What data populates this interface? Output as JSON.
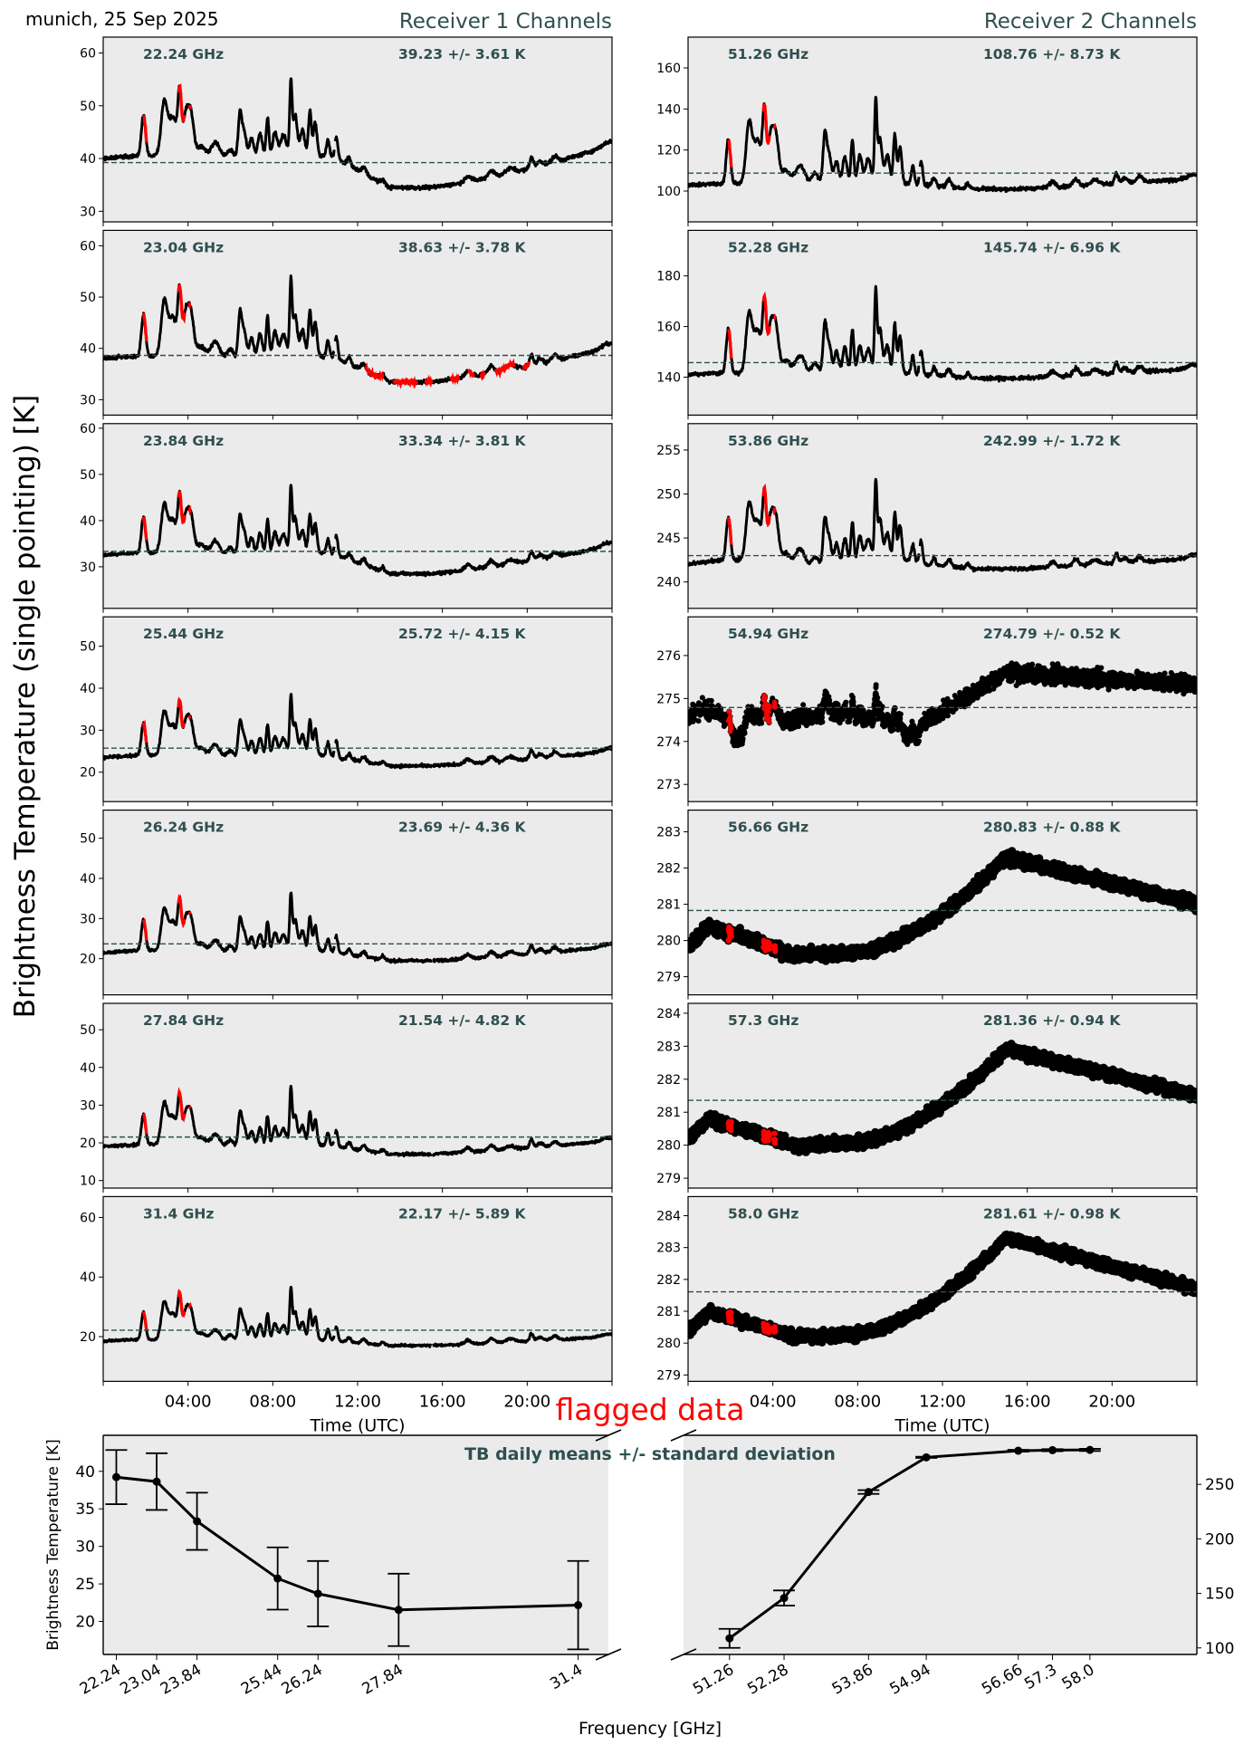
{
  "figure": {
    "location_date": "munich, 25 Sep 2025",
    "receiver1_title": "Receiver 1 Channels",
    "receiver2_title": "Receiver 2 Channels",
    "ylabel": "Brightness Temperature (single pointing) [K]",
    "flag_label": "flagged data",
    "accent_color": "#2f4f4f",
    "flag_color": "#ff0000",
    "panel_bg": "#ebebeb"
  },
  "chart_data": [
    {
      "type": "line",
      "title": "Receiver 1 Channels",
      "xlabel": "Time (UTC)",
      "xticks": [
        "04:00",
        "08:00",
        "12:00",
        "16:00",
        "20:00"
      ],
      "xlim_hours": [
        0,
        24
      ],
      "panels": [
        {
          "freq_label": "22.24 GHz",
          "stats_label": "39.23 +/- 3.61 K",
          "mean": 39.23,
          "std": 3.61,
          "ylim": [
            28,
            63
          ],
          "yticks": [
            30,
            40,
            50,
            60
          ],
          "base_night": 40,
          "base_day": 34.5,
          "peak_scale": 1.0
        },
        {
          "freq_label": "23.04 GHz",
          "stats_label": "38.63 +/- 3.78 K",
          "mean": 38.63,
          "std": 3.78,
          "ylim": [
            27,
            63
          ],
          "yticks": [
            30,
            40,
            50,
            60
          ],
          "base_night": 38,
          "base_day": 33.5,
          "peak_scale": 1.05,
          "extra_flags": true
        },
        {
          "freq_label": "23.84 GHz",
          "stats_label": "33.34 +/- 3.81 K",
          "mean": 33.34,
          "std": 3.81,
          "ylim": [
            21,
            61
          ],
          "yticks": [
            30,
            40,
            50,
            60
          ],
          "base_night": 32.5,
          "base_day": 28.5,
          "peak_scale": 1.0
        },
        {
          "freq_label": "25.44 GHz",
          "stats_label": "25.72 +/- 4.15 K",
          "mean": 25.72,
          "std": 4.15,
          "ylim": [
            13,
            57
          ],
          "yticks": [
            20,
            30,
            40,
            50
          ],
          "base_night": 23.5,
          "base_day": 21.5,
          "peak_scale": 1.0
        },
        {
          "freq_label": "26.24 GHz",
          "stats_label": "23.69 +/- 4.36 K",
          "mean": 23.69,
          "std": 4.36,
          "ylim": [
            11,
            57
          ],
          "yticks": [
            20,
            30,
            40,
            50
          ],
          "base_night": 21.5,
          "base_day": 19.5,
          "peak_scale": 1.0
        },
        {
          "freq_label": "27.84 GHz",
          "stats_label": "21.54 +/- 4.82 K",
          "mean": 21.54,
          "std": 4.82,
          "ylim": [
            8,
            57
          ],
          "yticks": [
            10,
            20,
            30,
            40,
            50
          ],
          "base_night": 19,
          "base_day": 17,
          "peak_scale": 1.05
        },
        {
          "freq_label": "31.4 GHz",
          "stats_label": "22.17 +/- 5.89 K",
          "mean": 22.17,
          "std": 5.89,
          "ylim": [
            5,
            67
          ],
          "yticks": [
            20,
            40,
            60
          ],
          "base_night": 18.5,
          "base_day": 17,
          "peak_scale": 1.2
        }
      ]
    },
    {
      "type": "line",
      "title": "Receiver 2 Channels",
      "xlabel": "Time (UTC)",
      "xticks": [
        "04:00",
        "08:00",
        "12:00",
        "16:00",
        "20:00"
      ],
      "xlim_hours": [
        0,
        24
      ],
      "panels": [
        {
          "freq_label": "51.26 GHz",
          "stats_label": "108.76 +/- 8.73 K",
          "mean": 108.76,
          "std": 8.73,
          "ylim": [
            85,
            175
          ],
          "yticks": [
            100,
            120,
            140,
            160
          ],
          "kind": "wet",
          "base_night": 103,
          "base_day": 101,
          "peak_scale": 2.5
        },
        {
          "freq_label": "52.28 GHz",
          "stats_label": "145.74 +/- 6.96 K",
          "mean": 145.74,
          "std": 6.96,
          "ylim": [
            125,
            198
          ],
          "yticks": [
            140,
            160,
            180
          ],
          "kind": "wet",
          "base_night": 141,
          "base_day": 139.5,
          "peak_scale": 2.0
        },
        {
          "freq_label": "53.86 GHz",
          "stats_label": "242.99 +/- 1.72 K",
          "mean": 242.99,
          "std": 1.72,
          "ylim": [
            237,
            258
          ],
          "yticks": [
            240,
            245,
            250,
            255
          ],
          "kind": "wet",
          "base_night": 242,
          "base_day": 241.5,
          "peak_scale": 0.55
        },
        {
          "freq_label": "54.94 GHz",
          "stats_label": "274.79 +/- 0.52 K",
          "mean": 274.79,
          "std": 0.52,
          "ylim": [
            272.6,
            276.9
          ],
          "yticks": [
            273,
            274,
            275,
            276
          ],
          "kind": "mid"
        },
        {
          "freq_label": "56.66 GHz",
          "stats_label": "280.83 +/- 0.88 K",
          "mean": 280.83,
          "std": 0.88,
          "ylim": [
            278.5,
            283.6
          ],
          "yticks": [
            279,
            280,
            281,
            282,
            283
          ],
          "kind": "opaque",
          "low": 279.6,
          "high": 282.3,
          "end": 281.0,
          "start": 279.8
        },
        {
          "freq_label": "57.3 GHz",
          "stats_label": "281.36 +/- 0.94 K",
          "mean": 281.36,
          "std": 0.94,
          "ylim": [
            278.7,
            284.3
          ],
          "yticks": [
            279,
            280,
            281,
            282,
            283,
            284
          ],
          "kind": "opaque",
          "low": 280.0,
          "high": 282.9,
          "end": 281.5,
          "start": 280.2
        },
        {
          "freq_label": "58.0 GHz",
          "stats_label": "281.61 +/- 0.98 K",
          "mean": 281.61,
          "std": 0.98,
          "ylim": [
            278.8,
            284.6
          ],
          "yticks": [
            279,
            280,
            281,
            282,
            283,
            284
          ],
          "kind": "opaque",
          "low": 280.2,
          "high": 283.3,
          "end": 281.7,
          "start": 280.4
        }
      ]
    },
    {
      "type": "line",
      "title": "TB daily means +/- standard deviation",
      "xlabel": "Frequency [GHz]",
      "ylabel": "Brightness Temperature [K]",
      "broken_axis": true,
      "left": {
        "x": [
          22.24,
          23.04,
          23.84,
          25.44,
          26.24,
          27.84,
          31.4
        ],
        "xtick_labels": [
          "22.24",
          "23.04",
          "23.84",
          "25.44",
          "26.24",
          "27.84",
          "31.4"
        ],
        "y": [
          39.23,
          38.63,
          33.34,
          25.72,
          23.69,
          21.54,
          22.17
        ],
        "yerr": [
          3.61,
          3.78,
          3.81,
          4.15,
          4.36,
          4.82,
          5.89
        ],
        "xlim": [
          21.98,
          32.0
        ],
        "ylim": [
          15.6,
          44.8
        ],
        "yticks": [
          20,
          25,
          30,
          35,
          40
        ]
      },
      "right": {
        "x": [
          51.26,
          52.28,
          53.86,
          54.94,
          56.66,
          57.3,
          58.0
        ],
        "xtick_labels": [
          "51.26",
          "52.28",
          "53.86",
          "54.94",
          "56.66",
          "57.3",
          "58.0"
        ],
        "y": [
          108.76,
          145.74,
          242.99,
          274.79,
          280.83,
          281.36,
          281.61
        ],
        "yerr": [
          8.73,
          6.96,
          1.72,
          0.52,
          0.88,
          0.94,
          0.98
        ],
        "xlim": [
          50.4,
          60.0
        ],
        "ylim": [
          94,
          295
        ],
        "yticks": [
          100,
          150,
          200,
          250
        ]
      }
    }
  ]
}
